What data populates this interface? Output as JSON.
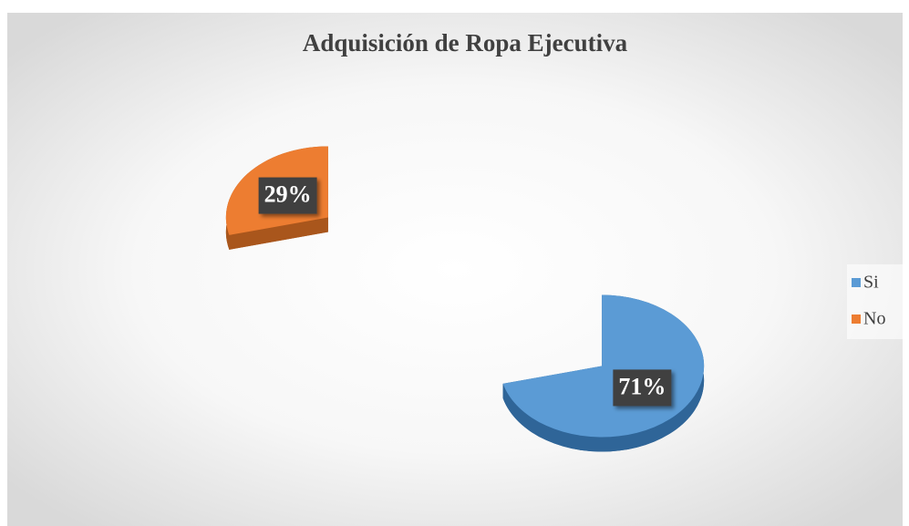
{
  "chart_data": {
    "type": "pie",
    "title": "Adquisición de Ropa Ejecutiva",
    "categories": [
      "Si",
      "No"
    ],
    "values": [
      71,
      29
    ],
    "value_labels": [
      "71%",
      "29%"
    ],
    "colors": [
      "#5b9bd5",
      "#ed7d31"
    ],
    "side_colors": [
      "#2f6598",
      "#a9561c"
    ],
    "legend": "right"
  }
}
